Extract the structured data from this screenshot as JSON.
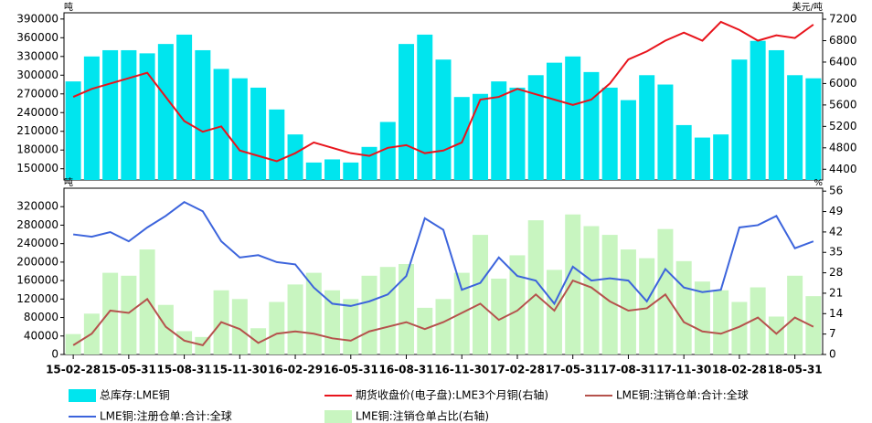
{
  "chart_data": {
    "type": "combo",
    "categories": [
      "15-02-28",
      null,
      null,
      "15-05-31",
      null,
      null,
      "15-08-31",
      null,
      null,
      "15-11-30",
      null,
      null,
      "16-02-29",
      null,
      null,
      "16-05-31",
      null,
      null,
      "16-08-31",
      null,
      null,
      "16-11-30",
      null,
      null,
      "17-02-28",
      null,
      null,
      "17-05-31",
      null,
      null,
      "17-08-31",
      null,
      null,
      "17-11-30",
      null,
      null,
      "18-02-28",
      null,
      null,
      "18-05-31",
      null
    ],
    "panels": [
      {
        "y_unit": "吨",
        "y2_unit": "美元/吨",
        "ylim": [
          132000,
          400000
        ],
        "yticks": [
          150000,
          180000,
          210000,
          240000,
          270000,
          300000,
          330000,
          360000,
          390000
        ],
        "y2lim": [
          4200,
          7320
        ],
        "y2ticks": [
          4400,
          4800,
          5200,
          5600,
          6000,
          6400,
          6800,
          7200
        ],
        "series": [
          {
            "name": "总库存:LME铜",
            "kind": "bar",
            "color": "#00e5ee",
            "values": [
              290000,
              330000,
              340000,
              340000,
              335000,
              350000,
              365000,
              340000,
              310000,
              295000,
              280000,
              245000,
              205000,
              160000,
              165000,
              160000,
              185000,
              225000,
              350000,
              365000,
              325000,
              265000,
              270000,
              290000,
              280000,
              300000,
              320000,
              330000,
              305000,
              280000,
              260000,
              300000,
              285000,
              220000,
              200000,
              205000,
              325000,
              355000,
              340000,
              300000,
              295000
            ]
          },
          {
            "name": "期货收盘价(电子盘):LME3个月铜(右轴)",
            "kind": "line",
            "axis": "y2",
            "color": "#e8141c",
            "values": [
              5750,
              5900,
              6000,
              6100,
              6200,
              5750,
              5300,
              5100,
              5200,
              4750,
              4650,
              4550,
              4700,
              4900,
              4800,
              4700,
              4650,
              4800,
              4850,
              4700,
              4750,
              4900,
              5700,
              5750,
              5900,
              5800,
              5700,
              5600,
              5700,
              6000,
              6450,
              6600,
              6800,
              6950,
              6800,
              7150,
              7000,
              6800,
              6900,
              6850,
              7100
            ]
          }
        ]
      },
      {
        "y_unit": "吨",
        "y2_unit": "%",
        "ylim": [
          0,
          360000
        ],
        "yticks": [
          0,
          40000,
          80000,
          120000,
          160000,
          200000,
          240000,
          280000,
          320000
        ],
        "y2lim": [
          0,
          57
        ],
        "y2ticks": [
          0,
          7,
          14,
          21,
          28,
          35,
          42,
          49,
          56
        ],
        "series": [
          {
            "name": "LME铜:注销仓单占比(右轴)",
            "kind": "bar",
            "axis": "y2",
            "color": "#c8f5c0",
            "values": [
              7,
              14,
              28,
              27,
              36,
              17,
              8,
              6,
              22,
              19,
              9,
              18,
              24,
              28,
              22,
              19,
              27,
              30,
              31,
              16,
              19,
              28,
              41,
              26,
              34,
              46,
              29,
              48,
              44,
              41,
              36,
              33,
              43,
              32,
              25,
              22,
              18,
              23,
              13,
              27,
              20
            ]
          },
          {
            "name": "LME铜:注销仓单:合计:全球",
            "kind": "line",
            "color": "#b5524c",
            "values": [
              20000,
              45000,
              95000,
              90000,
              120000,
              60000,
              30000,
              20000,
              70000,
              55000,
              25000,
              45000,
              50000,
              45000,
              35000,
              30000,
              50000,
              60000,
              70000,
              55000,
              70000,
              90000,
              110000,
              75000,
              95000,
              130000,
              95000,
              160000,
              145000,
              115000,
              95000,
              100000,
              130000,
              70000,
              50000,
              45000,
              60000,
              80000,
              45000,
              80000,
              60000
            ]
          },
          {
            "name": "LME铜:注册仓单:合计:全球",
            "kind": "line",
            "color": "#3c64dc",
            "values": [
              260000,
              255000,
              265000,
              245000,
              275000,
              300000,
              330000,
              310000,
              245000,
              210000,
              215000,
              200000,
              195000,
              145000,
              110000,
              105000,
              115000,
              130000,
              170000,
              295000,
              270000,
              140000,
              155000,
              210000,
              170000,
              160000,
              110000,
              190000,
              160000,
              165000,
              160000,
              115000,
              185000,
              145000,
              135000,
              140000,
              275000,
              280000,
              300000,
              230000,
              245000
            ]
          }
        ]
      }
    ]
  }
}
